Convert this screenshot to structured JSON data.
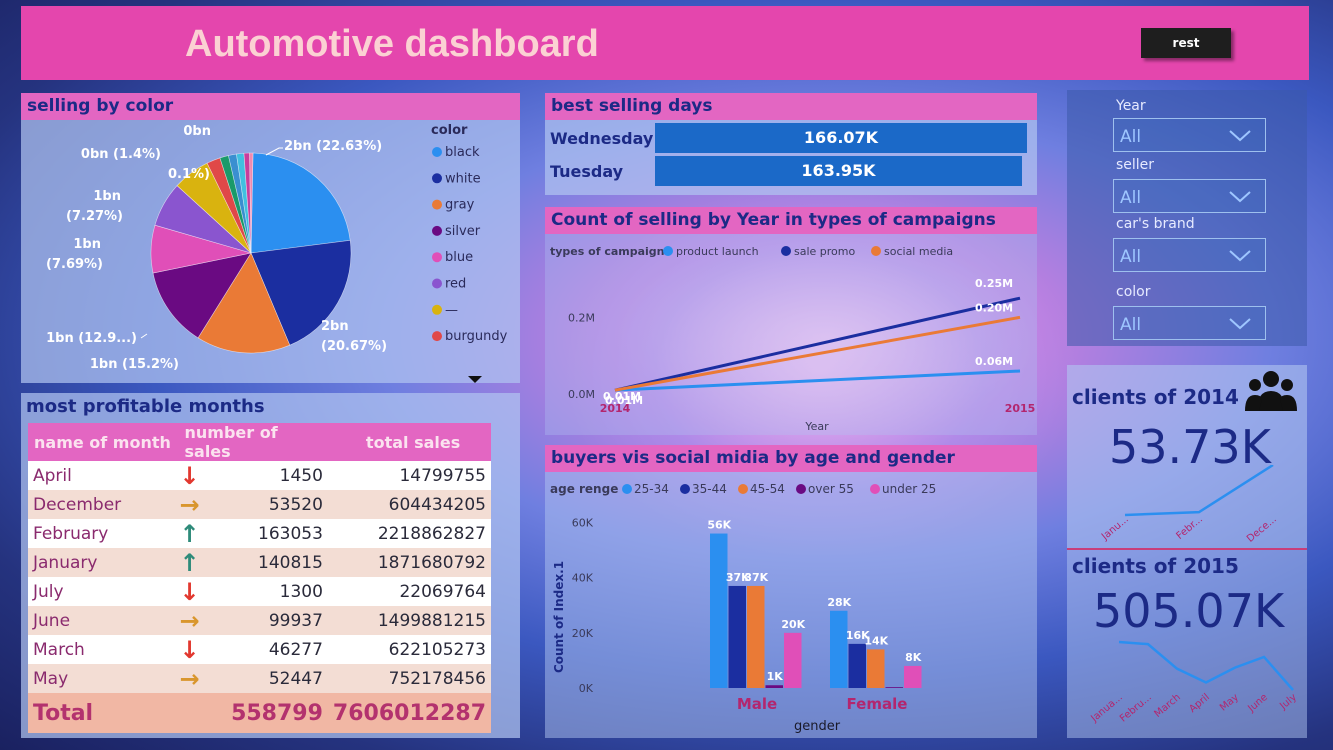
{
  "header": {
    "title": "Automotive dashboard",
    "reset_label": "rest"
  },
  "selling_by_color": {
    "title": "selling by color"
  },
  "profitable": {
    "title": "most profitable months",
    "columns": [
      "name of month",
      "number of sales",
      "total sales"
    ],
    "rows": [
      {
        "month": "April",
        "trend": "down",
        "sales": "1450",
        "total": "14799755"
      },
      {
        "month": "December",
        "trend": "flat",
        "sales": "53520",
        "total": "604434205"
      },
      {
        "month": "February",
        "trend": "up",
        "sales": "163053",
        "total": "2218862827"
      },
      {
        "month": "January",
        "trend": "up",
        "sales": "140815",
        "total": "1871680792"
      },
      {
        "month": "July",
        "trend": "down",
        "sales": "1300",
        "total": "22069764"
      },
      {
        "month": "June",
        "trend": "flat",
        "sales": "99937",
        "total": "1499881215"
      },
      {
        "month": "March",
        "trend": "down",
        "sales": "46277",
        "total": "622105273"
      },
      {
        "month": "May",
        "trend": "flat",
        "sales": "52447",
        "total": "752178456"
      }
    ],
    "total": {
      "label": "Total",
      "sales": "558799",
      "total": "7606012287"
    },
    "trend_colors": {
      "up": "#2e8b7a",
      "down": "#e2382f",
      "flat": "#d9962d"
    }
  },
  "best_days": {
    "title": "best selling days",
    "days": [
      {
        "day": "Wednesday",
        "value": 166.07,
        "label": "166.07K"
      },
      {
        "day": "Tuesday",
        "value": 163.95,
        "label": "163.95K"
      }
    ]
  },
  "campaigns": {
    "title": "Count of selling by Year in types of campaigns"
  },
  "buyers": {
    "title": "buyers vis social midia by age and gender"
  },
  "slicers": [
    {
      "label": "Year",
      "value": "All"
    },
    {
      "label": "seller",
      "value": "All"
    },
    {
      "label": "car's brand",
      "value": "All"
    },
    {
      "label": "color",
      "value": "All"
    }
  ],
  "cards": {
    "c2014": {
      "title": "clients of 2014",
      "value": "53.73K"
    },
    "c2015": {
      "title": "clients of 2015",
      "value": "505.07K"
    }
  },
  "chart_data": [
    {
      "type": "pie",
      "legend_title": "color",
      "legend_position": "right",
      "slices": [
        {
          "name": "black",
          "value": 22.63,
          "label": "2bn (22.63%)",
          "color": "#2b8ff0"
        },
        {
          "name": "white",
          "value": 20.67,
          "label": "2bn (20.67%)",
          "color": "#1b2ea0"
        },
        {
          "name": "gray",
          "value": 15.2,
          "label": "1bn (15.2%)",
          "color": "#ea7a36"
        },
        {
          "name": "silver",
          "value": 12.9,
          "label": "1bn (12.9...)",
          "color": "#6a0a82"
        },
        {
          "name": "blue",
          "value": 7.69,
          "label": "1bn (7.69%)",
          "color": "#e04fb8"
        },
        {
          "name": "red",
          "value": 7.27,
          "label": "1bn (7.27%)",
          "color": "#8a55cf"
        },
        {
          "name": "—",
          "value": 6.0,
          "label": "",
          "color": "#d9b30f"
        },
        {
          "name": "burgundy",
          "value": 2.2,
          "label": "",
          "color": "#e04848"
        },
        {
          "name": "",
          "value": 1.4,
          "label": "0bn (1.4%)",
          "color": "#1a9a6a"
        },
        {
          "name": "",
          "value": 1.3,
          "label": "",
          "color": "#3a8fd0"
        },
        {
          "name": "",
          "value": 1.2,
          "label": "",
          "color": "#40c0e0"
        },
        {
          "name": "",
          "value": 0.9,
          "label": "",
          "color": "#c83e9c"
        },
        {
          "name": "",
          "value": 0.54,
          "label": "0bn",
          "color": "#f08ab0"
        }
      ],
      "extra_labels": [
        "0.1%)"
      ],
      "legend_names": [
        "black",
        "white",
        "gray",
        "silver",
        "blue",
        "red",
        "—",
        "burgundy"
      ]
    },
    {
      "type": "line",
      "legend_title": "types of campaign",
      "x": [
        "2014",
        "2015"
      ],
      "xlabel": "Year",
      "ylabel": "",
      "yticks": [
        {
          "v": 0,
          "label": "0.0M"
        },
        {
          "v": 0.2,
          "label": "0.2M"
        }
      ],
      "ylim": [
        0,
        0.3
      ],
      "series": [
        {
          "name": "product launch",
          "color": "#2b8ff0",
          "values": [
            0.01,
            0.06
          ],
          "labels": [
            "0.01M",
            "0.06M"
          ]
        },
        {
          "name": "sale promo",
          "color": "#1b2ea0",
          "values": [
            0.01,
            0.25
          ],
          "labels": [
            "",
            "0.25M"
          ]
        },
        {
          "name": "social media",
          "color": "#ea7a36",
          "values": [
            0.01,
            0.2
          ],
          "labels": [
            "",
            "0.20M"
          ]
        }
      ]
    },
    {
      "type": "bar",
      "legend_title": "age renge",
      "categories": [
        "Male",
        "Female"
      ],
      "xlabel": "gender",
      "ylabel": "Count of Index.1",
      "ylim": [
        0,
        65
      ],
      "yticks": [
        {
          "v": 0,
          "label": "0K"
        },
        {
          "v": 20,
          "label": "20K"
        },
        {
          "v": 40,
          "label": "40K"
        },
        {
          "v": 60,
          "label": "60K"
        }
      ],
      "series": [
        {
          "name": "25-34",
          "color": "#2b8ff0",
          "values": [
            56,
            28
          ],
          "labels": [
            "56K",
            "28K"
          ]
        },
        {
          "name": "35-44",
          "color": "#1b2ea0",
          "values": [
            37,
            16
          ],
          "labels": [
            "37K",
            "16K"
          ]
        },
        {
          "name": "45-54",
          "color": "#ea7a36",
          "values": [
            37,
            14
          ],
          "labels": [
            "37K",
            "14K"
          ]
        },
        {
          "name": "over 55",
          "color": "#6a0a82",
          "values": [
            1,
            0.3
          ],
          "labels": [
            "1K",
            ""
          ]
        },
        {
          "name": "under 25",
          "color": "#e04fb8",
          "values": [
            20,
            8
          ],
          "labels": [
            "20K",
            "8K"
          ]
        }
      ]
    },
    {
      "type": "line",
      "x": [
        "Janu...",
        "Febr...",
        "Dece..."
      ],
      "values": [
        0,
        0.2,
        3.5
      ]
    },
    {
      "type": "line",
      "x": [
        "Janua...",
        "Febru...",
        "March",
        "April",
        "May",
        "June",
        "July"
      ],
      "values": [
        5,
        4.8,
        2.5,
        1.2,
        2.6,
        3.6,
        0.5
      ]
    }
  ]
}
